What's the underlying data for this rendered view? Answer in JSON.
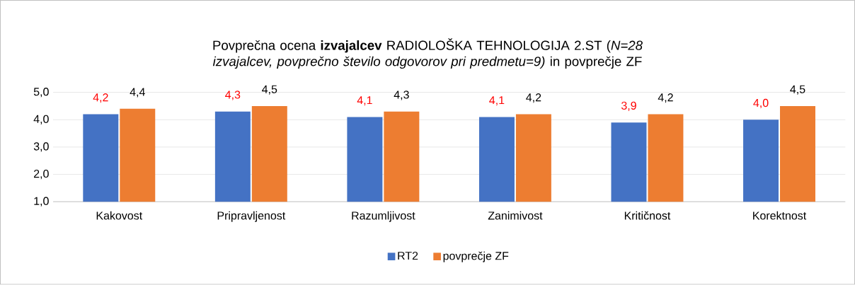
{
  "chart_data": {
    "type": "bar",
    "title": "Povprečna ocena **izvajalcev** RADIOLOŠKA TEHNOLOGIJA 2.ST (*N=28 izvajalcev, povprečno število odgovorov pri predmetu=9)* in povprečje ZF",
    "categories": [
      "Kakovost",
      "Pripravljenost",
      "Razumljivost",
      "Zanimivost",
      "Kritičnost",
      "Korektnost"
    ],
    "series": [
      {
        "name": "RT2",
        "color": "#4472c4",
        "values": [
          4.2,
          4.3,
          4.1,
          4.1,
          3.9,
          4.0
        ],
        "value_labels": [
          "4,2",
          "4,3",
          "4,1",
          "4,1",
          "3,9",
          "4,0"
        ]
      },
      {
        "name": "povprečje ZF",
        "color": "#ed7d31",
        "values": [
          4.4,
          4.5,
          4.3,
          4.2,
          4.2,
          4.5
        ],
        "value_labels": [
          "4,4",
          "4,5",
          "4,3",
          "4,2",
          "4,2",
          "4,5"
        ]
      }
    ],
    "ylim": [
      1.0,
      5.0
    ],
    "yticks": [
      {
        "value": 1.0,
        "label": "1,0"
      },
      {
        "value": 2.0,
        "label": "2,0"
      },
      {
        "value": 3.0,
        "label": "3,0"
      },
      {
        "value": 4.0,
        "label": "4,0"
      },
      {
        "value": 5.0,
        "label": "5,0"
      }
    ],
    "grid": "y",
    "legend": "bottom"
  }
}
